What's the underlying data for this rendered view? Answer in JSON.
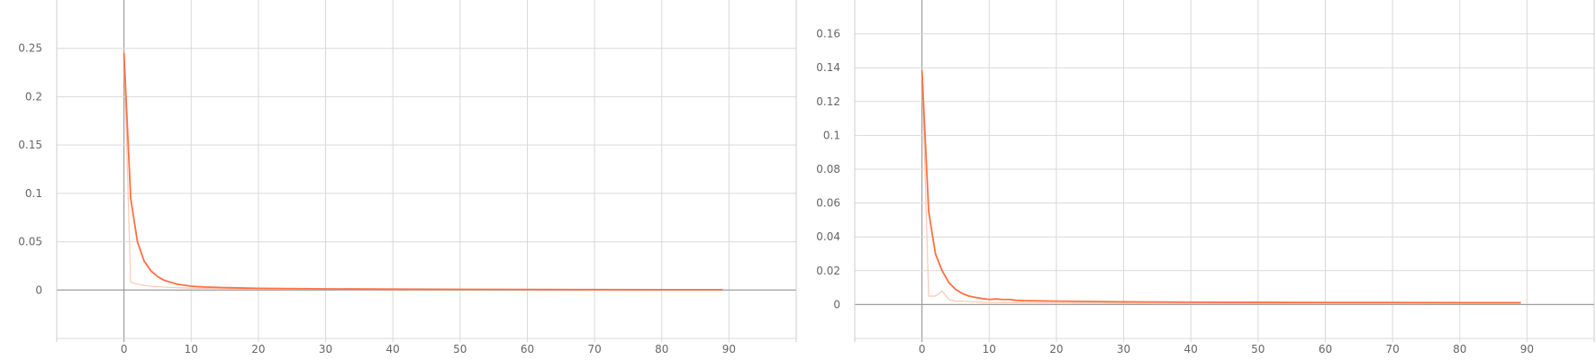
{
  "colors": {
    "smoothed_line": "#ff7043",
    "raw_line": "#ffc8b3",
    "grid": "#d9d9d9",
    "axis": "#9e9e9e",
    "tick_text": "#666666"
  },
  "chart_data": [
    {
      "type": "line",
      "title": "",
      "xlabel": "",
      "ylabel": "",
      "grid": true,
      "xlim": [
        -10,
        100
      ],
      "ylim": [
        -0.05,
        0.3
      ],
      "x_ticks": [
        -10,
        0,
        10,
        20,
        30,
        40,
        50,
        60,
        70,
        80,
        90,
        100
      ],
      "x_tick_labels": [
        "",
        "0",
        "10",
        "20",
        "30",
        "40",
        "50",
        "60",
        "70",
        "80",
        "90",
        ""
      ],
      "y_ticks": [
        -0.05,
        0,
        0.05,
        0.1,
        0.15,
        0.2,
        0.25
      ],
      "y_tick_labels": [
        "",
        "0",
        "0.05",
        "0.1",
        "0.15",
        "0.2",
        "0.25"
      ],
      "series": [
        {
          "role": "smoothed",
          "x": [
            0,
            1,
            2,
            3,
            4,
            5,
            6,
            7,
            8,
            10,
            12,
            15,
            20,
            30,
            40,
            50,
            60,
            70,
            80,
            89
          ],
          "y": [
            0.245,
            0.095,
            0.05,
            0.03,
            0.02,
            0.014,
            0.01,
            0.008,
            0.006,
            0.004,
            0.0032,
            0.0025,
            0.0018,
            0.0012,
            0.0009,
            0.0007,
            0.0006,
            0.0005,
            0.0004,
            0.0004
          ]
        },
        {
          "role": "raw",
          "x": [
            0,
            1,
            2,
            3,
            4,
            6,
            8,
            10,
            15,
            20,
            30,
            40,
            50,
            60,
            70,
            80,
            89
          ],
          "y": [
            0.245,
            0.008,
            0.006,
            0.005,
            0.004,
            0.003,
            0.0025,
            0.002,
            0.0015,
            0.001,
            0.0008,
            0.0006,
            0.0005,
            0.0004,
            0.0004,
            0.0003,
            0.0003
          ]
        }
      ]
    },
    {
      "type": "line",
      "title": "",
      "xlabel": "",
      "ylabel": "",
      "grid": true,
      "xlim": [
        -10,
        100
      ],
      "ylim": [
        -0.02,
        0.18
      ],
      "x_ticks": [
        -10,
        0,
        10,
        20,
        30,
        40,
        50,
        60,
        70,
        80,
        90,
        100
      ],
      "x_tick_labels": [
        "",
        "0",
        "10",
        "20",
        "30",
        "40",
        "50",
        "60",
        "70",
        "80",
        "90",
        ""
      ],
      "y_ticks": [
        -0.02,
        0,
        0.02,
        0.04,
        0.06,
        0.08,
        0.1,
        0.12,
        0.14,
        0.16
      ],
      "y_tick_labels": [
        "",
        "0",
        "0.02",
        "0.04",
        "0.06",
        "0.08",
        "0.1",
        "0.12",
        "0.14",
        "0.16"
      ],
      "series": [
        {
          "role": "smoothed",
          "x": [
            0,
            1,
            2,
            3,
            4,
            5,
            6,
            7,
            8,
            9,
            10,
            11,
            12,
            13,
            14,
            15,
            20,
            30,
            40,
            50,
            60,
            70,
            80,
            89
          ],
          "y": [
            0.138,
            0.055,
            0.03,
            0.02,
            0.013,
            0.009,
            0.0065,
            0.005,
            0.0042,
            0.0035,
            0.003,
            0.0033,
            0.003,
            0.003,
            0.0025,
            0.0023,
            0.002,
            0.0016,
            0.0014,
            0.0013,
            0.0012,
            0.0012,
            0.0011,
            0.0011
          ]
        },
        {
          "role": "raw",
          "x": [
            0,
            1,
            2,
            3,
            4,
            5,
            6,
            8,
            10,
            15,
            20,
            30,
            40,
            50,
            60,
            70,
            80,
            89
          ],
          "y": [
            0.138,
            0.005,
            0.005,
            0.008,
            0.003,
            0.002,
            0.002,
            0.0015,
            0.0012,
            0.001,
            0.0009,
            0.0008,
            0.0007,
            0.0006,
            0.0006,
            0.0005,
            0.0005,
            0.0005
          ]
        }
      ]
    }
  ]
}
